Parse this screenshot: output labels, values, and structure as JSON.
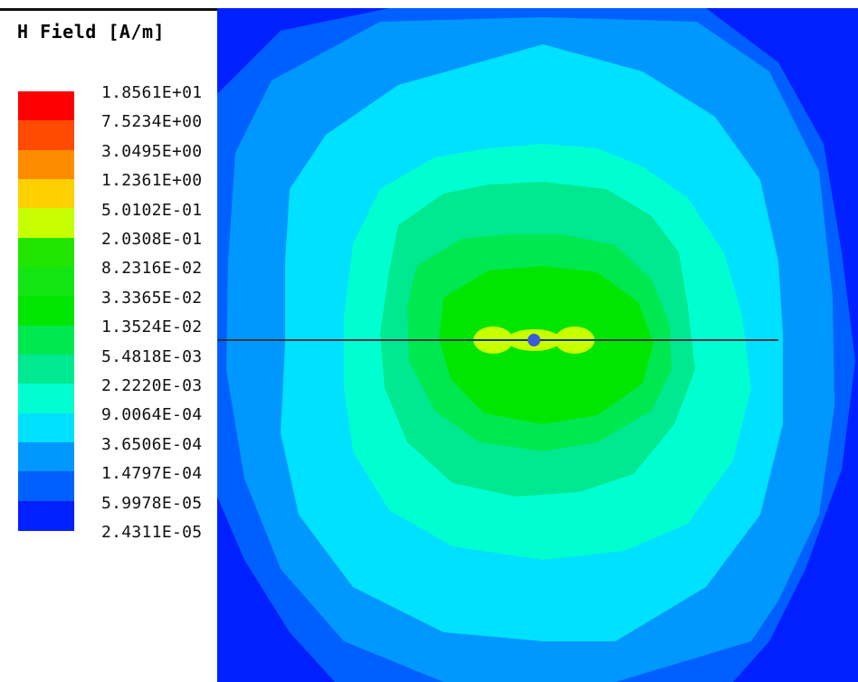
{
  "legend": {
    "title": "H Field [A/m]"
  },
  "chart_data": {
    "type": "heatmap",
    "title": "H Field [A/m]",
    "quantity": "H Field",
    "unit": "A/m",
    "scale": "log",
    "colorbar_levels": [
      "1.8561E+01",
      "7.5234E+00",
      "3.0495E+00",
      "1.2361E+00",
      "5.0102E-01",
      "2.0308E-01",
      "8.2316E-02",
      "3.3365E-02",
      "1.3524E-02",
      "5.4818E-03",
      "2.2220E-03",
      "9.0064E-04",
      "3.6506E-04",
      "1.4797E-04",
      "5.9978E-05",
      "2.4311E-05"
    ],
    "colorbar_colors": [
      "#ff0000",
      "#ff4a00",
      "#ff8c00",
      "#ffd000",
      "#c8ff00",
      "#22e600",
      "#14e614",
      "#00e600",
      "#00e850",
      "#00e890",
      "#00ffd0",
      "#00e0ff",
      "#0098ff",
      "#0060ff",
      "#0020ff"
    ],
    "field_regions_outer_to_inner": [
      {
        "level_index": 14,
        "color": "#0020ff"
      },
      {
        "level_index": 13,
        "color": "#0060ff"
      },
      {
        "level_index": 12,
        "color": "#0098ff"
      },
      {
        "level_index": 11,
        "color": "#00e0ff"
      },
      {
        "level_index": 10,
        "color": "#00ffd0"
      },
      {
        "level_index": 9,
        "color": "#00e890"
      },
      {
        "level_index": 8,
        "color": "#00e850"
      },
      {
        "level_index": 7,
        "color": "#00e600"
      },
      {
        "level_index": 4,
        "color": "#c8ff00"
      }
    ],
    "source_marker_color": "#3a5cd8",
    "axis_line": "horizontal line through source"
  }
}
